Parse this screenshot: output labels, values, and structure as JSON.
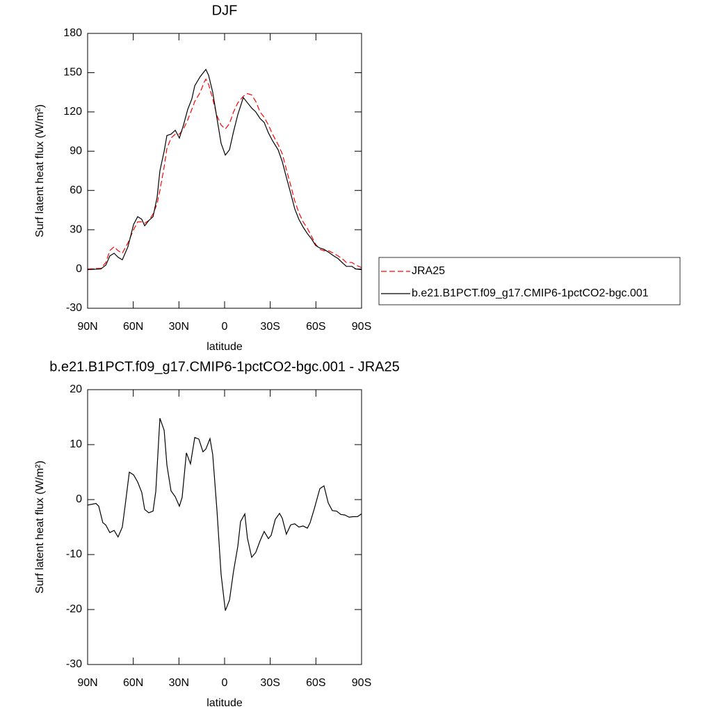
{
  "chart_data": [
    {
      "type": "line",
      "title": "DJF",
      "xlabel": "latitude",
      "ylabel": "Surf latent heat flux (W/m²)",
      "x": [
        90,
        81.3,
        78,
        75.4,
        72.6,
        70,
        67.2,
        63.5,
        59.8,
        57.1,
        54.4,
        52.5,
        49.8,
        47,
        44.3,
        42.5,
        39.7,
        37.9,
        35.2,
        32.4,
        29.7,
        27,
        24.2,
        21.5,
        19.6,
        16,
        13.3,
        12.3,
        10.5,
        7.8,
        5,
        2.3,
        -0.5,
        -3.2,
        -5.9,
        -8.7,
        -12.3,
        -15,
        -17.8,
        -20.5,
        -23.3,
        -26,
        -28.8,
        -31.5,
        -35.2,
        -37.9,
        -40.6,
        -43.4,
        -46.1,
        -48.8,
        -51.6,
        -54.4,
        -57.1,
        -59.8,
        -62.6,
        -65.3,
        -68.1,
        -71.7,
        -74.5,
        -77.2,
        -80,
        -83.6,
        -86.3,
        -90
      ],
      "series": [
        {
          "name": "JRA25",
          "color": "#ff0000",
          "dash": "dashed",
          "values": [
            0,
            0.5,
            5,
            14,
            17,
            14,
            12,
            20,
            30,
            36,
            36,
            35,
            37,
            42,
            50,
            60,
            78,
            92,
            100,
            103,
            103,
            107,
            114,
            122,
            128,
            135,
            143,
            145,
            141,
            130,
            117,
            110,
            107,
            111,
            120,
            127,
            132,
            134,
            133,
            128,
            120,
            116,
            110,
            103,
            95,
            88,
            76,
            64,
            52,
            43,
            36,
            31,
            25,
            19,
            15,
            14,
            14,
            12,
            10,
            8,
            5,
            5,
            3,
            1
          ]
        },
        {
          "name": "b.e21.B1PCT.f09_g17.CMIP6-1pctCO2-bgc.001",
          "color": "#000000",
          "dash": "solid",
          "values": [
            -0.5,
            0,
            3,
            10,
            12,
            9,
            7,
            17,
            34,
            40,
            38,
            33,
            37,
            40,
            55,
            75,
            90,
            102,
            103,
            106,
            100,
            110,
            122,
            130,
            140,
            147,
            151,
            152.5,
            148,
            135,
            115,
            96,
            87,
            91,
            105,
            118,
            131,
            127,
            123,
            120,
            115,
            112,
            104,
            98,
            91,
            82,
            70,
            58,
            46,
            38,
            32,
            27,
            23,
            18,
            16,
            15,
            13,
            10,
            8,
            5,
            2,
            2,
            0,
            -0.5
          ]
        }
      ],
      "xlim": [
        90,
        -90
      ],
      "xticks": [
        {
          "value": 90,
          "label": "90N"
        },
        {
          "value": 60,
          "label": "60N"
        },
        {
          "value": 30,
          "label": "30N"
        },
        0,
        {
          "value": -30,
          "label": "30S"
        },
        {
          "value": -60,
          "label": "60S"
        },
        {
          "value": -90,
          "label": "90S"
        }
      ],
      "ylim": [
        -30,
        180
      ],
      "yticks": [
        -30,
        0,
        30,
        60,
        90,
        120,
        150,
        180
      ],
      "legend": "right"
    },
    {
      "type": "line",
      "title": "b.e21.B1PCT.f09_g17.CMIP6-1pctCO2-bgc.001 - JRA25",
      "xlabel": "latitude",
      "ylabel": "Surf latent heat flux (W/m²)",
      "x": [
        90,
        84.5,
        82.7,
        80,
        78.1,
        75.4,
        72.6,
        70,
        67.2,
        65.3,
        62.6,
        59.8,
        57.1,
        54.4,
        52.5,
        49.8,
        47,
        45.2,
        42.5,
        39.7,
        37.9,
        35.2,
        32.4,
        29.7,
        27.9,
        25.1,
        22.4,
        19.6,
        16.9,
        14.2,
        12.3,
        9.6,
        7.8,
        5,
        2.3,
        -0.5,
        -3.2,
        -5.9,
        -8.7,
        -10.5,
        -13.3,
        -15,
        -17.8,
        -20.5,
        -23.3,
        -26,
        -28.8,
        -30.6,
        -33.3,
        -36.1,
        -37.9,
        -40.6,
        -43.4,
        -46.1,
        -48.8,
        -51.6,
        -54.4,
        -56.2,
        -58.9,
        -62.6,
        -65.3,
        -68.1,
        -70.8,
        -73.6,
        -76.3,
        -79,
        -81.8,
        -84.5,
        -87.3,
        -90
      ],
      "values": [
        -1,
        -0.7,
        -1.2,
        -4.2,
        -4.6,
        -6,
        -5.6,
        -6.8,
        -5,
        -1,
        5,
        4.5,
        3.2,
        1.3,
        -1.8,
        -2.4,
        -2.1,
        1.5,
        14.8,
        12.6,
        6.3,
        1.6,
        0.5,
        -1.2,
        0.4,
        8.5,
        6.5,
        11.3,
        11,
        8.7,
        9.2,
        11.1,
        8.2,
        -2,
        -13.6,
        -20.2,
        -18.3,
        -13,
        -8.5,
        -4,
        -2.6,
        -7,
        -10.5,
        -9.6,
        -7.5,
        -5.8,
        -7.1,
        -6.5,
        -3.6,
        -2.5,
        -3.4,
        -6.3,
        -4.6,
        -4.4,
        -5,
        -4.8,
        -5.2,
        -4.2,
        -1.7,
        2,
        2.5,
        -0.6,
        -2,
        -2.1,
        -2.7,
        -2.8,
        -3.2,
        -3.1,
        -3.1,
        -2.6
      ],
      "color": "#000000",
      "xlim": [
        90,
        -90
      ],
      "xticks": [
        {
          "value": 90,
          "label": "90N"
        },
        {
          "value": 60,
          "label": "60N"
        },
        {
          "value": 30,
          "label": "30N"
        },
        0,
        {
          "value": -30,
          "label": "30S"
        },
        {
          "value": -60,
          "label": "60S"
        },
        {
          "value": -90,
          "label": "90S"
        }
      ],
      "ylim": [
        -30,
        20
      ],
      "yticks": [
        -30,
        -20,
        -10,
        0,
        10,
        20
      ]
    }
  ]
}
